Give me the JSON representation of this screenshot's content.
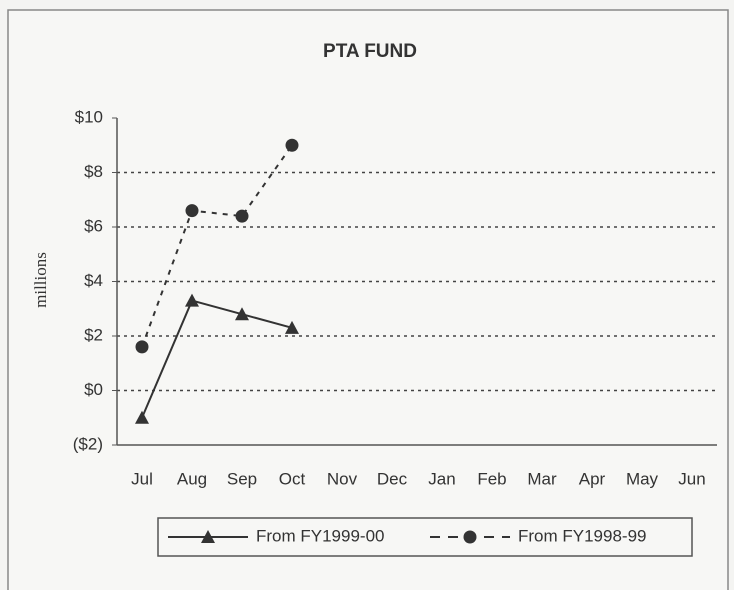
{
  "chart_data": {
    "type": "line",
    "title": "PTA FUND",
    "y_label": "millions",
    "categories": [
      "Jul",
      "Aug",
      "Sep",
      "Oct",
      "Nov",
      "Dec",
      "Jan",
      "Feb",
      "Mar",
      "Apr",
      "May",
      "Jun"
    ],
    "series": [
      {
        "name": "From FY1999-00",
        "color": "#333333",
        "marker": "triangle",
        "dash": "solid",
        "values": [
          -1,
          3.3,
          2.8,
          2.3,
          null,
          null,
          null,
          null,
          null,
          null,
          null,
          null
        ]
      },
      {
        "name": "From FY1998-99",
        "color": "#333333",
        "marker": "circle",
        "dash": "dashed",
        "values": [
          1.6,
          6.6,
          6.4,
          9.0,
          null,
          null,
          null,
          null,
          null,
          null,
          null,
          null
        ]
      }
    ],
    "ylim": [
      -2,
      10
    ],
    "yticks": [
      {
        "value": -2,
        "label": "($2)"
      },
      {
        "value": 0,
        "label": "$0"
      },
      {
        "value": 2,
        "label": "$2"
      },
      {
        "value": 4,
        "label": "$4"
      },
      {
        "value": 6,
        "label": "$6"
      },
      {
        "value": 8,
        "label": "$8"
      },
      {
        "value": 10,
        "label": "$10"
      }
    ],
    "grid": true,
    "legend": "bottom"
  }
}
